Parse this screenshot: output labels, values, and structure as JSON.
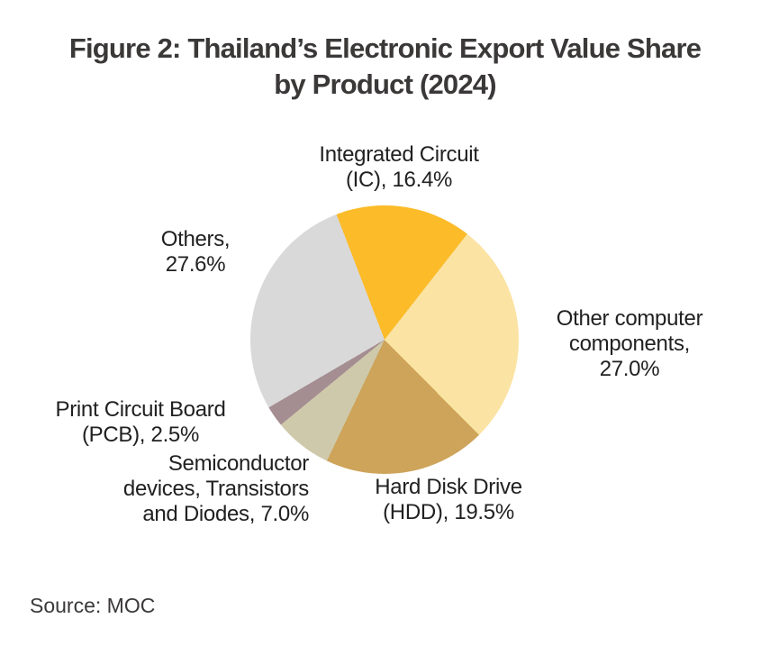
{
  "title": {
    "full": "Figure 2: Thailand’s Electronic Export Value Share by Product (2024)",
    "lines": [
      "Figure 2: Thailand’s Electronic Export Value Share",
      "by Product (2024)"
    ]
  },
  "source": "Source: MOC",
  "colors": {
    "title_text": "#3B3838",
    "label_text": "#212121",
    "background": "#FFFFFF"
  },
  "chart_data": {
    "type": "pie",
    "title": "Figure 2: Thailand’s Electronic Export Value Share by Product (2024)",
    "unit": "% of export value",
    "start_angle_deg": -21,
    "direction": "clockwise",
    "legend": "none",
    "labels_position": "outside",
    "slices": [
      {
        "label": "Integrated Circuit (IC)",
        "value": 16.4,
        "color": "#FCBB29"
      },
      {
        "label": "Other computer components",
        "value": 27.0,
        "color": "#FBE3A3"
      },
      {
        "label": "Hard Disk Drive (HDD)",
        "value": 19.5,
        "color": "#CDA45A"
      },
      {
        "label": "Semiconductor devices, Transistors and Diodes",
        "value": 7.0,
        "color": "#CFC9AB"
      },
      {
        "label": "Print Circuit Board (PCB)",
        "value": 2.5,
        "color": "#A58E92"
      },
      {
        "label": "Others",
        "value": 27.6,
        "color": "#D9D9D9"
      }
    ]
  },
  "labels": {
    "ic": {
      "lines": [
        "Integrated Circuit",
        "(IC), 16.4%"
      ]
    },
    "others": {
      "lines": [
        "Others,",
        "27.6%"
      ]
    },
    "other_components": {
      "lines": [
        "Other computer",
        "components,",
        "27.0%"
      ]
    },
    "pcb": {
      "lines": [
        "Print Circuit Board",
        "(PCB), 2.5%"
      ]
    },
    "semiconductor": {
      "lines": [
        "Semiconductor",
        "devices, Transistors",
        "and Diodes, 7.0%"
      ]
    },
    "hdd": {
      "lines": [
        "Hard Disk Drive",
        "(HDD), 19.5%"
      ]
    }
  }
}
